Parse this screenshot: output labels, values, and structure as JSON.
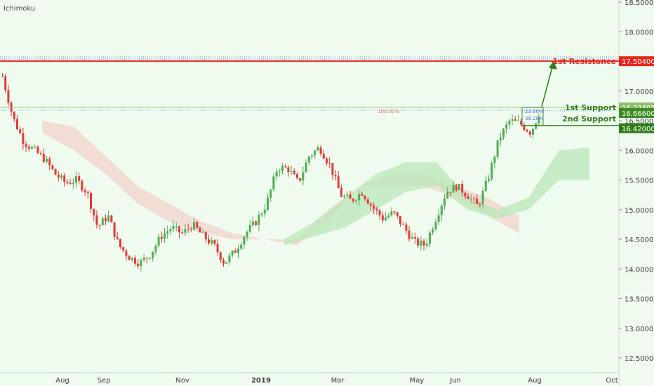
{
  "indicator_label": "Ichimoku",
  "colors": {
    "background": "#f0fbf0",
    "up": "#4caf50",
    "down": "#e53935",
    "resistance": "#e8261e",
    "support": "#3a8a22",
    "support_tag": "#8ebd6c",
    "support_tag2": "#2e7d19",
    "arrow": "#2e7d19",
    "cloud_green": "#b9e7b9",
    "cloud_red": "#f3d3cc",
    "axis_text": "#3c3c3c"
  },
  "chart_data": {
    "type": "candlestick",
    "title": "",
    "y_ticks": [
      "18.50000",
      "18.00000",
      "17.50000",
      "17.00000",
      "16.50000",
      "16.00000",
      "15.50000",
      "15.00000",
      "14.50000",
      "14.00000",
      "13.50000",
      "13.00000",
      "12.50000"
    ],
    "x_ticks": [
      "Aug",
      "Sep",
      "Nov",
      "2019",
      "Mar",
      "May",
      "Jun",
      "Aug",
      "Oct"
    ],
    "ylim": [
      12.3,
      18.55
    ],
    "levels": [
      {
        "name": "1st Resistance",
        "value": 17.504,
        "label": "17.50400",
        "kind": "resistance"
      },
      {
        "name": "1st Support",
        "value": 16.72402,
        "label": "16.72402",
        "kind": "support1"
      },
      {
        "name": "",
        "value": 16.666,
        "label": "16.66600",
        "kind": "mid"
      },
      {
        "name": "2nd Support",
        "value": 16.42,
        "label": "16.42000",
        "kind": "support2"
      }
    ],
    "fib_annotations": [
      "100.00%",
      "23.60%",
      "38.20%"
    ],
    "price_path": [
      17.25,
      16.55,
      16.15,
      16.0,
      15.85,
      15.6,
      15.45,
      15.5,
      15.3,
      14.7,
      14.9,
      14.4,
      14.2,
      14.1,
      14.25,
      14.55,
      14.7,
      14.6,
      14.75,
      14.55,
      14.4,
      14.1,
      14.3,
      14.6,
      14.8,
      15.1,
      15.7,
      15.7,
      15.45,
      15.9,
      16.05,
      15.75,
      15.25,
      15.15,
      15.3,
      15.05,
      14.85,
      14.95,
      14.7,
      14.45,
      14.4,
      14.85,
      15.3,
      15.4,
      15.25,
      15.05,
      15.55,
      16.2,
      16.5,
      16.45,
      16.3,
      16.72
    ],
    "cloud_red": [
      [
        16.5,
        16.3
      ],
      [
        16.4,
        16.0
      ],
      [
        15.9,
        15.6
      ],
      [
        15.4,
        15.1
      ],
      [
        15.1,
        14.8
      ],
      [
        14.8,
        14.6
      ],
      [
        14.6,
        14.5
      ],
      [
        14.5,
        14.5
      ],
      [
        14.5,
        14.4
      ],
      [
        15.0,
        14.8
      ],
      [
        15.4,
        15.4
      ],
      [
        15.6,
        15.4
      ],
      [
        15.6,
        15.4
      ],
      [
        15.4,
        15.2
      ],
      [
        15.2,
        14.9
      ],
      [
        14.9,
        14.6
      ]
    ],
    "cloud_green": [
      [
        14.5,
        14.4
      ],
      [
        14.8,
        14.55
      ],
      [
        15.2,
        14.7
      ],
      [
        15.6,
        15.0
      ],
      [
        15.8,
        15.3
      ],
      [
        15.8,
        15.4
      ],
      [
        15.2,
        15.0
      ],
      [
        15.0,
        14.85
      ],
      [
        15.2,
        15.0
      ],
      [
        16.0,
        15.5
      ],
      [
        16.05,
        15.5
      ]
    ]
  }
}
